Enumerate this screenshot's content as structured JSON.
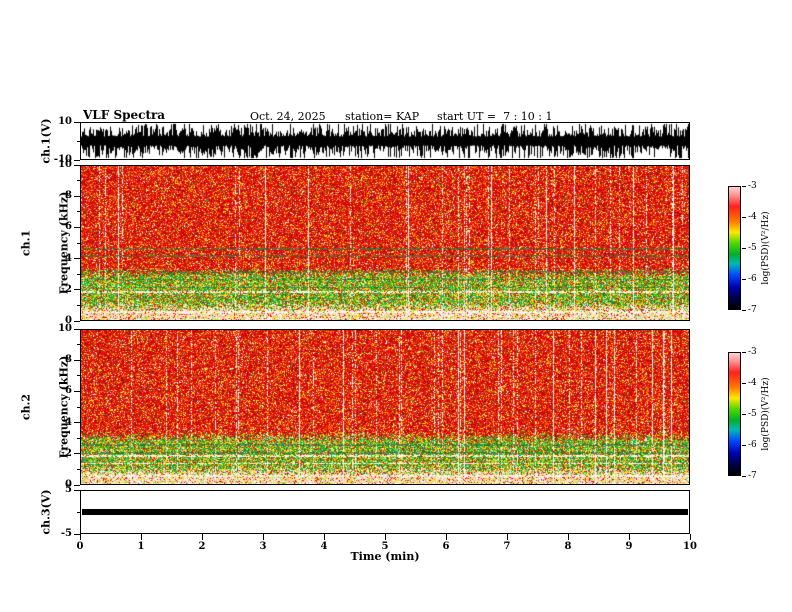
{
  "header": {
    "title": "VLF Spectra",
    "date": "Oct. 24, 2025",
    "station": "station= KAP",
    "start_ut": "start UT =  7 : 10 : 1"
  },
  "axes": {
    "x": {
      "label": "Time (min)",
      "ticks": [
        0,
        1,
        2,
        3,
        4,
        5,
        6,
        7,
        8,
        9,
        10
      ],
      "lim": [
        0,
        10
      ]
    },
    "ch1_wave": {
      "label": "ch.1(V)",
      "ticks": [
        10,
        -10
      ],
      "lim": [
        -10,
        10
      ]
    },
    "spec1": {
      "label_ch": "ch.1",
      "label_axis": "Frequency (kHz)",
      "ticks": [
        0,
        2,
        4,
        6,
        8,
        10
      ],
      "lim": [
        0,
        10
      ]
    },
    "spec2": {
      "label_ch": "ch.2",
      "label_axis": "Frequency (kHz)",
      "ticks": [
        0,
        2,
        4,
        6,
        8,
        10
      ],
      "lim": [
        0,
        10
      ]
    },
    "ch3": {
      "label": "ch.3(V)",
      "ticks": [
        5,
        -5
      ],
      "lim": [
        -5,
        5
      ]
    }
  },
  "colorbar": {
    "label": "log(PSD)(V²/Hz)",
    "ticks": [
      -3,
      -4,
      -5,
      -6,
      -7
    ],
    "gradient": [
      {
        "stop": 0,
        "color": "#ffd2d2"
      },
      {
        "stop": 7,
        "color": "#ff9090"
      },
      {
        "stop": 16,
        "color": "#ff2020"
      },
      {
        "stop": 28,
        "color": "#ff7800"
      },
      {
        "stop": 37,
        "color": "#ffe800"
      },
      {
        "stop": 46,
        "color": "#50d800"
      },
      {
        "stop": 55,
        "color": "#00b028"
      },
      {
        "stop": 63,
        "color": "#00b8b8"
      },
      {
        "stop": 72,
        "color": "#0048ff"
      },
      {
        "stop": 82,
        "color": "#0000b0"
      },
      {
        "stop": 91,
        "color": "#000048"
      },
      {
        "stop": 100,
        "color": "#000000"
      }
    ]
  },
  "colors": {
    "trace": "#000000",
    "axis": "#000000",
    "red": "#e01010",
    "dark_red": "#b00000",
    "orange": "#ff6000",
    "yellow": "#ffd800",
    "light_red": "#ff7860",
    "white": "#fff0ea",
    "green": "#28c028",
    "dark_green": "#128012",
    "light_green": "#90e060",
    "cyan": "#00b4a0",
    "pink": "#ffb4aa",
    "gray": "#6e6e6e",
    "pale_line": "#fff6f2"
  },
  "chart_data": [
    {
      "panel": "ch1_waveform",
      "type": "line",
      "ylabel": "ch.1(V)",
      "ylim": [
        -10,
        10
      ],
      "xlim": [
        0,
        10
      ],
      "yticks": [
        10,
        -10
      ],
      "content": "dense broadband black noise trace filling roughly -9 to +9 V continuously over the full 10 minutes"
    },
    {
      "panel": "ch1_spectrogram",
      "type": "heatmap",
      "xlabel": "Time (min)",
      "ylabel": "Frequency (kHz)",
      "zlabel": "log(PSD)(V²/Hz)",
      "xlim": [
        0,
        10
      ],
      "ylim": [
        0,
        10
      ],
      "zlim": [
        -7,
        -3
      ],
      "yticks": [
        0,
        2,
        4,
        6,
        8,
        10
      ],
      "content": "broadband red noise (~-3.5) above ~3 kHz with sparse near-white vertical streaks; mottled green/yellow band (~-5) from ~0.9 to 3 kHz; pale pink band below ~0.8 kHz",
      "dark_lines_khz": [
        2.15,
        2.65,
        3.15,
        4.2,
        4.65
      ],
      "pale_lines_khz": [
        0.55,
        1.85
      ]
    },
    {
      "panel": "ch2_spectrogram",
      "type": "heatmap",
      "xlabel": "Time (min)",
      "ylabel": "Frequency (kHz)",
      "zlabel": "log(PSD)(V²/Hz)",
      "xlim": [
        0,
        10
      ],
      "ylim": [
        0,
        10
      ],
      "zlim": [
        -7,
        -3
      ],
      "yticks": [
        0,
        2,
        4,
        6,
        8,
        10
      ],
      "content": "same broadband red noise above ~3 kHz with white vertical streaks; green/yellow mottled band below ~3 kHz; pale bands near 0.55, 1.35 and 1.85 kHz",
      "dark_lines_khz": [
        2.05,
        2.55
      ],
      "pale_lines_khz": [
        0.55,
        1.35,
        1.85
      ]
    },
    {
      "panel": "ch3_waveform",
      "type": "line",
      "ylabel": "ch.3(V)",
      "ylim": [
        -5,
        5
      ],
      "xlim": [
        0,
        10
      ],
      "yticks": [
        5,
        -5
      ],
      "content": "constant thick black trace at ~0 V (about ±0.6 V) across the full record"
    }
  ]
}
